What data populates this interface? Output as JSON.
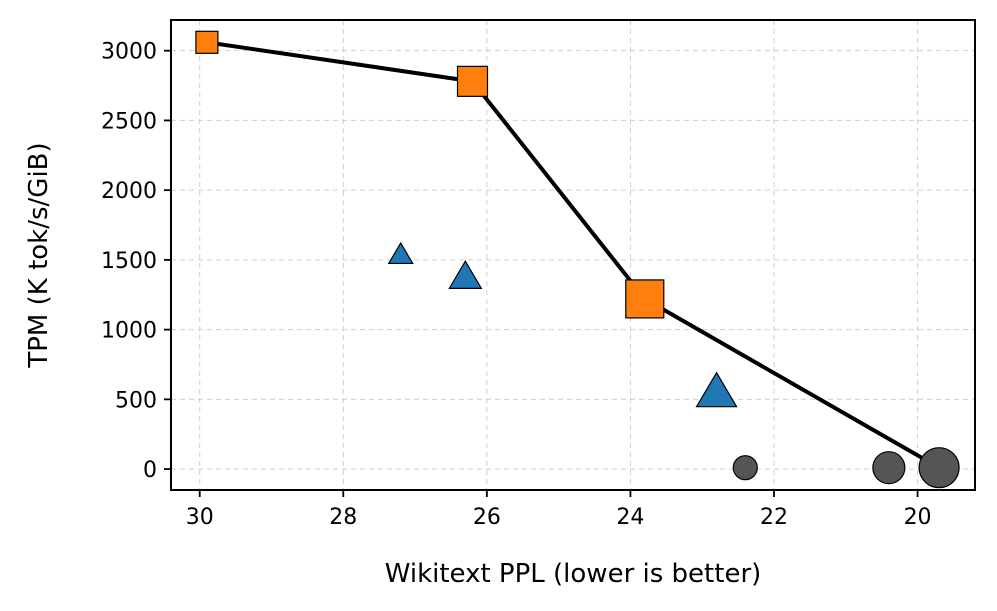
{
  "chart_data": {
    "type": "scatter",
    "xlabel": "Wikitext PPL (lower is better)",
    "ylabel": "TPM (K tok/s/GiB)",
    "xlim": [
      30.4,
      19.2
    ],
    "ylim": [
      -150,
      3220
    ],
    "x_reversed": true,
    "grid": true,
    "x_ticks": [
      30,
      28,
      26,
      24,
      22,
      20
    ],
    "y_ticks": [
      0,
      500,
      1000,
      1500,
      2000,
      2500,
      3000
    ],
    "series": [
      {
        "marker": "square",
        "color": "#ff7f0e",
        "points": [
          {
            "x": 29.9,
            "y": 3060,
            "size": 1
          },
          {
            "x": 26.2,
            "y": 2780,
            "size": 2
          },
          {
            "x": 23.8,
            "y": 1220,
            "size": 3
          }
        ]
      },
      {
        "marker": "triangle",
        "color": "#1f77b4",
        "points": [
          {
            "x": 27.2,
            "y": 1530,
            "size": 1
          },
          {
            "x": 26.3,
            "y": 1370,
            "size": 2
          },
          {
            "x": 22.8,
            "y": 540,
            "size": 3
          }
        ]
      },
      {
        "marker": "circle",
        "color": "#555555",
        "points": [
          {
            "x": 22.4,
            "y": 10,
            "size": 1
          },
          {
            "x": 20.4,
            "y": 10,
            "size": 2
          },
          {
            "x": 19.7,
            "y": 10,
            "size": 3
          }
        ]
      }
    ],
    "frontier": {
      "color": "#000000",
      "points": [
        {
          "x": 29.9,
          "y": 3060
        },
        {
          "x": 26.2,
          "y": 2780
        },
        {
          "x": 23.8,
          "y": 1220
        },
        {
          "x": 19.7,
          "y": 10
        }
      ]
    }
  }
}
